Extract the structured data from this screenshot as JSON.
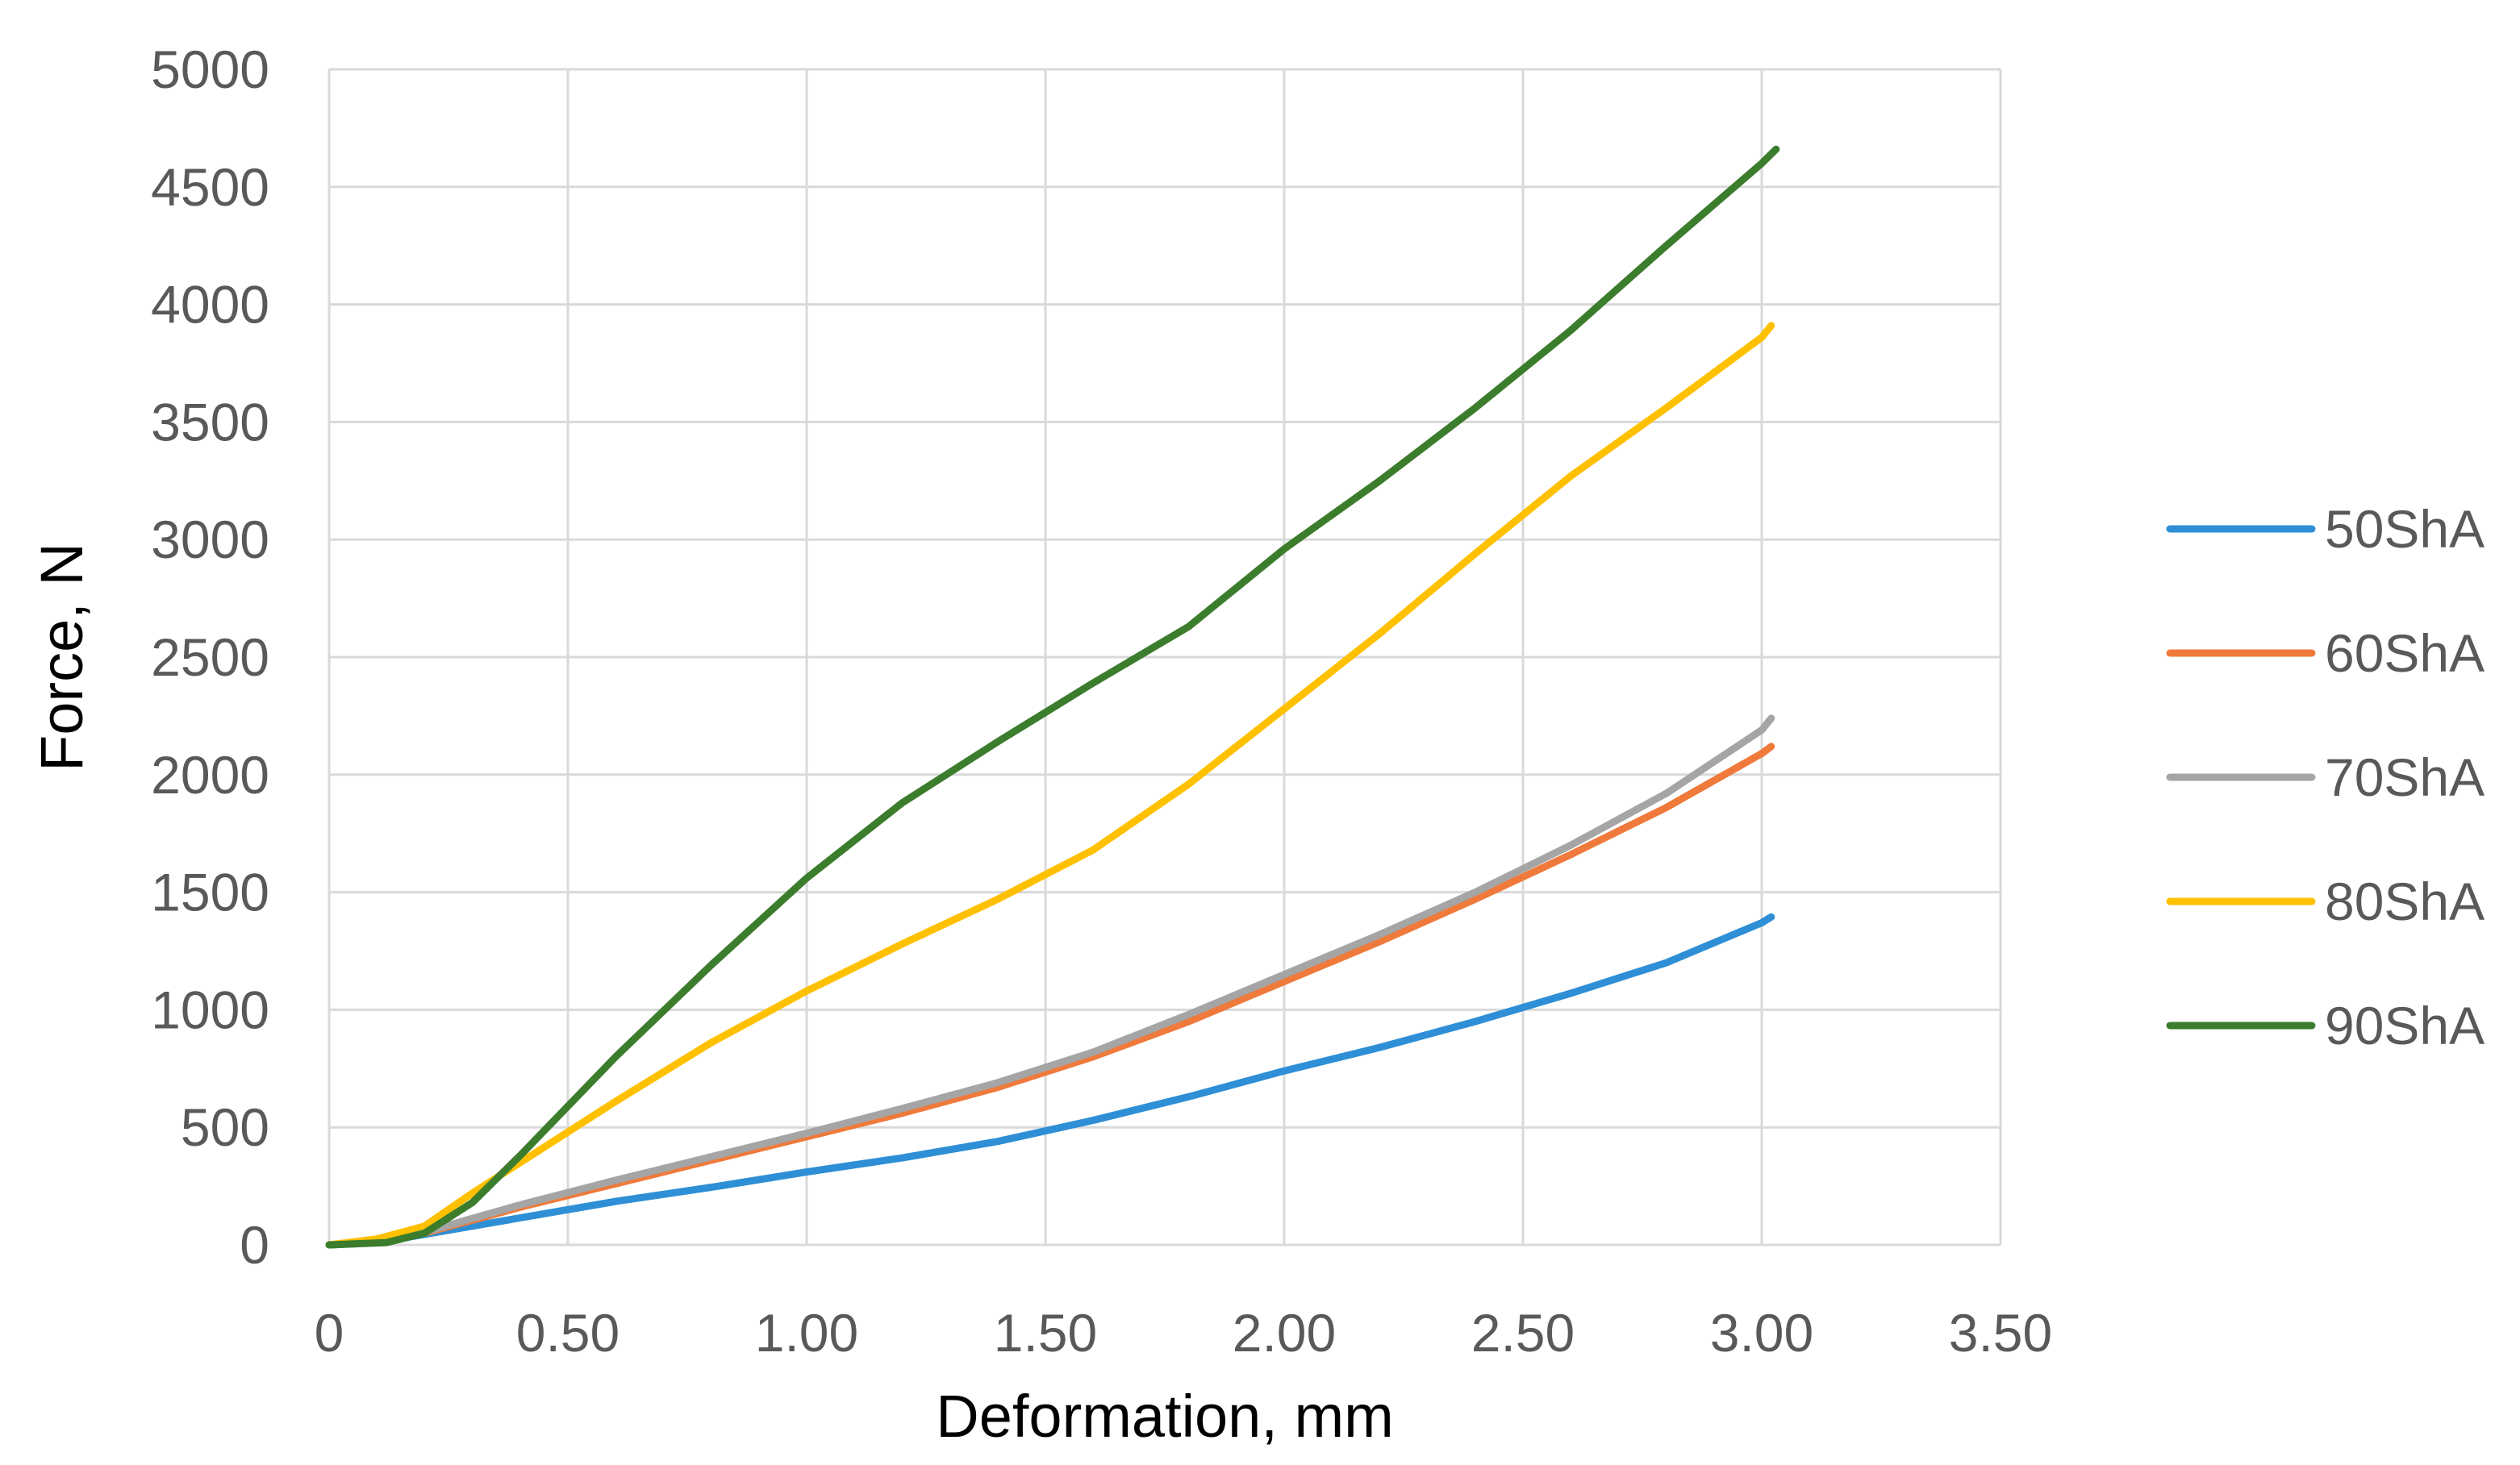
{
  "chart_data": {
    "type": "line",
    "title": "",
    "xlabel": "Deformation, mm",
    "ylabel": "Force, N",
    "xlim": [
      0,
      3.5
    ],
    "ylim": [
      0,
      5000
    ],
    "x_ticks": [
      0,
      0.5,
      1.0,
      1.5,
      2.0,
      2.5,
      3.0,
      3.5
    ],
    "x_tick_labels": [
      "0",
      "0.50",
      "1.00",
      "1.50",
      "2.00",
      "2.50",
      "3.00",
      "3.50"
    ],
    "y_ticks": [
      0,
      500,
      1000,
      1500,
      2000,
      2500,
      3000,
      3500,
      4000,
      4500,
      5000
    ],
    "y_tick_labels": [
      "0",
      "500",
      "1000",
      "1500",
      "2000",
      "2500",
      "3000",
      "3500",
      "4000",
      "4500",
      "5000"
    ],
    "grid": true,
    "legend_position": "right",
    "series": [
      {
        "name": "50ShA",
        "color": "#2e8fd6",
        "points": [
          [
            0,
            0
          ],
          [
            0.1,
            10
          ],
          [
            0.2,
            45
          ],
          [
            0.4,
            115
          ],
          [
            0.6,
            185
          ],
          [
            0.8,
            245
          ],
          [
            1.0,
            310
          ],
          [
            1.2,
            370
          ],
          [
            1.4,
            440
          ],
          [
            1.6,
            530
          ],
          [
            1.8,
            630
          ],
          [
            2.0,
            740
          ],
          [
            2.2,
            840
          ],
          [
            2.4,
            950
          ],
          [
            2.6,
            1070
          ],
          [
            2.8,
            1200
          ],
          [
            3.0,
            1370
          ],
          [
            3.02,
            1395
          ]
        ]
      },
      {
        "name": "60ShA",
        "color": "#ef7a3b",
        "points": [
          [
            0,
            0
          ],
          [
            0.1,
            20
          ],
          [
            0.2,
            50
          ],
          [
            0.4,
            160
          ],
          [
            0.6,
            260
          ],
          [
            0.8,
            360
          ],
          [
            1.0,
            460
          ],
          [
            1.2,
            560
          ],
          [
            1.4,
            670
          ],
          [
            1.6,
            800
          ],
          [
            1.8,
            950
          ],
          [
            2.0,
            1120
          ],
          [
            2.2,
            1290
          ],
          [
            2.4,
            1470
          ],
          [
            2.6,
            1660
          ],
          [
            2.8,
            1860
          ],
          [
            3.0,
            2090
          ],
          [
            3.02,
            2120
          ]
        ]
      },
      {
        "name": "70ShA",
        "color": "#a5a5a5",
        "points": [
          [
            0,
            0
          ],
          [
            0.1,
            15
          ],
          [
            0.2,
            55
          ],
          [
            0.4,
            170
          ],
          [
            0.6,
            275
          ],
          [
            0.8,
            375
          ],
          [
            1.0,
            475
          ],
          [
            1.2,
            580
          ],
          [
            1.4,
            690
          ],
          [
            1.6,
            820
          ],
          [
            1.8,
            980
          ],
          [
            2.0,
            1150
          ],
          [
            2.2,
            1320
          ],
          [
            2.4,
            1500
          ],
          [
            2.6,
            1700
          ],
          [
            2.8,
            1920
          ],
          [
            3.0,
            2190
          ],
          [
            3.02,
            2240
          ]
        ]
      },
      {
        "name": "80ShA",
        "color": "#ffc000",
        "points": [
          [
            0,
            0
          ],
          [
            0.1,
            25
          ],
          [
            0.2,
            80
          ],
          [
            0.3,
            220
          ],
          [
            0.4,
            350
          ],
          [
            0.6,
            610
          ],
          [
            0.8,
            860
          ],
          [
            1.0,
            1080
          ],
          [
            1.2,
            1280
          ],
          [
            1.4,
            1470
          ],
          [
            1.6,
            1680
          ],
          [
            1.8,
            1960
          ],
          [
            2.0,
            2280
          ],
          [
            2.2,
            2600
          ],
          [
            2.4,
            2940
          ],
          [
            2.6,
            3270
          ],
          [
            2.8,
            3560
          ],
          [
            3.0,
            3860
          ],
          [
            3.02,
            3910
          ]
        ]
      },
      {
        "name": "90ShA",
        "color": "#3b7d2c",
        "points": [
          [
            0,
            0
          ],
          [
            0.12,
            10
          ],
          [
            0.2,
            50
          ],
          [
            0.3,
            180
          ],
          [
            0.4,
            380
          ],
          [
            0.5,
            590
          ],
          [
            0.6,
            800
          ],
          [
            0.8,
            1190
          ],
          [
            1.0,
            1560
          ],
          [
            1.2,
            1880
          ],
          [
            1.4,
            2140
          ],
          [
            1.6,
            2390
          ],
          [
            1.8,
            2630
          ],
          [
            2.0,
            2960
          ],
          [
            2.2,
            3250
          ],
          [
            2.4,
            3560
          ],
          [
            2.6,
            3890
          ],
          [
            2.8,
            4250
          ],
          [
            3.0,
            4600
          ],
          [
            3.03,
            4660
          ]
        ]
      }
    ]
  }
}
